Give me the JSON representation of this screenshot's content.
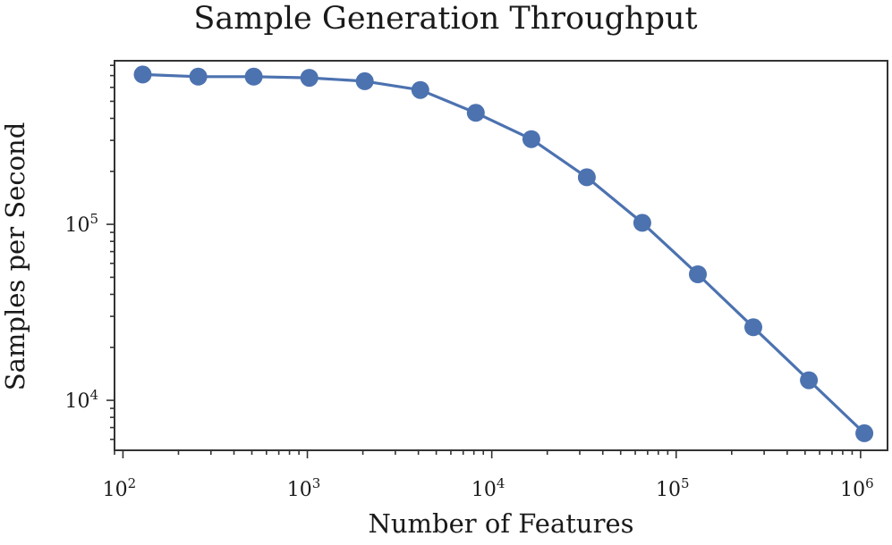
{
  "chart_data": {
    "type": "line",
    "title": "Sample Generation Throughput",
    "xlabel": "Number of Features",
    "ylabel": "Samples per Second",
    "xscale": "log",
    "yscale": "log",
    "xlim": [
      90,
      1400000
    ],
    "ylim": [
      5200,
      850000
    ],
    "x_ticks": [
      {
        "base": "10",
        "exp": "2",
        "value": 100
      },
      {
        "base": "10",
        "exp": "3",
        "value": 1000
      },
      {
        "base": "10",
        "exp": "4",
        "value": 10000
      },
      {
        "base": "10",
        "exp": "5",
        "value": 100000
      },
      {
        "base": "10",
        "exp": "6",
        "value": 1000000
      }
    ],
    "y_ticks": [
      {
        "base": "10",
        "exp": "4",
        "value": 10000
      },
      {
        "base": "10",
        "exp": "5",
        "value": 100000
      }
    ],
    "grid": false,
    "legend": "none",
    "color": "#4c72b0",
    "series": [
      {
        "x": [
          128,
          256,
          512,
          1024,
          2048,
          4096,
          8192,
          16384,
          32768,
          65536,
          131072,
          262144,
          524288,
          1048576
        ],
        "values": [
          710000,
          690000,
          690000,
          680000,
          650000,
          580000,
          430000,
          305000,
          185000,
          102000,
          52000,
          26000,
          13000,
          6500
        ]
      }
    ]
  }
}
